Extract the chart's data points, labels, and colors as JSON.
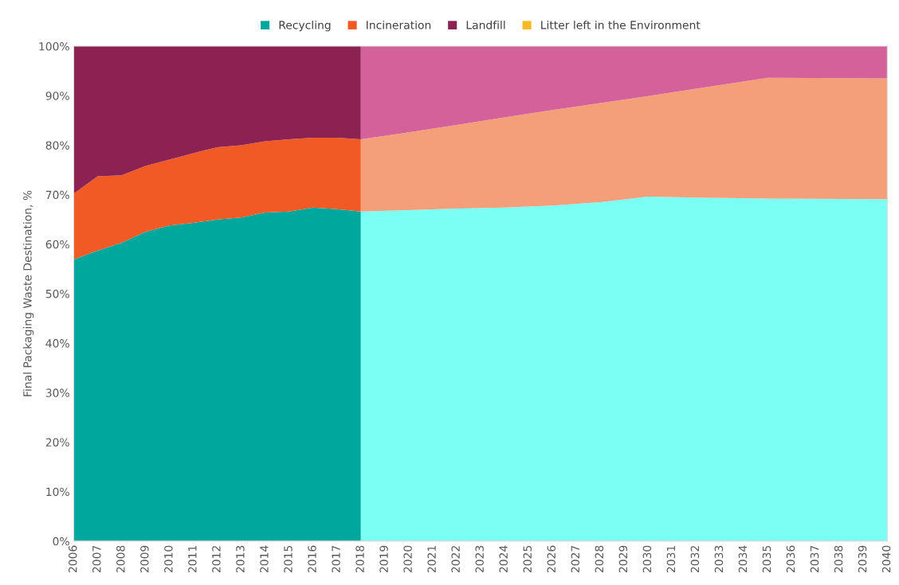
{
  "chart_data": {
    "type": "area",
    "stacked": true,
    "ylabel": "Final Packaging Waste Destination, %",
    "x": [
      2006,
      2007,
      2008,
      2009,
      2010,
      2011,
      2012,
      2013,
      2014,
      2015,
      2016,
      2017,
      2018,
      2018,
      2020,
      2022,
      2024,
      2026,
      2028,
      2030,
      2032,
      2035,
      2040
    ],
    "series": [
      {
        "name": "Recycling",
        "color": "#00a79d",
        "values": [
          56.9,
          58.7,
          60.3,
          62.5,
          63.8,
          64.3,
          65.0,
          65.4,
          66.4,
          66.6,
          67.4,
          67.1,
          66.6,
          null,
          null,
          null,
          null,
          null,
          null,
          null,
          null,
          null,
          null
        ]
      },
      {
        "name": "Incineration",
        "color": "#f15a24",
        "values": [
          13.3,
          15.0,
          13.6,
          13.3,
          13.3,
          14.1,
          14.6,
          14.6,
          14.4,
          14.6,
          14.1,
          14.4,
          14.6,
          null,
          null,
          null,
          null,
          null,
          null,
          null,
          null,
          null,
          null
        ]
      },
      {
        "name": "Landfill",
        "color": "#8b2252",
        "values": [
          29.8,
          26.3,
          26.1,
          24.2,
          22.9,
          21.6,
          20.4,
          20.0,
          19.2,
          18.8,
          18.5,
          18.5,
          18.8,
          null,
          null,
          null,
          null,
          null,
          null,
          null,
          null,
          null,
          null
        ]
      },
      {
        "color": "#7bfff4",
        "values": [
          null,
          null,
          null,
          null,
          null,
          null,
          null,
          null,
          null,
          null,
          null,
          null,
          null,
          66.6,
          66.9,
          67.2,
          67.4,
          67.8,
          68.5,
          69.6,
          69.4,
          69.2,
          69.1
        ]
      },
      {
        "color": "#f59e7a",
        "values": [
          null,
          null,
          null,
          null,
          null,
          null,
          null,
          null,
          null,
          null,
          null,
          null,
          null,
          14.6,
          15.7,
          16.9,
          18.2,
          19.3,
          20.0,
          20.3,
          22.0,
          24.4,
          24.4
        ]
      },
      {
        "color": "#d4619a",
        "values": [
          null,
          null,
          null,
          null,
          null,
          null,
          null,
          null,
          null,
          null,
          null,
          null,
          null,
          18.8,
          17.4,
          15.9,
          14.4,
          12.9,
          11.5,
          10.1,
          8.6,
          6.4,
          6.5
        ]
      },
      {
        "name": "Litter left in the Environment",
        "color": "#f7b924",
        "values": [
          null,
          null,
          null,
          null,
          null,
          null,
          null,
          null,
          null,
          null,
          null,
          null,
          null,
          null,
          null,
          null,
          null,
          null,
          null,
          null,
          null,
          null,
          null
        ]
      }
    ],
    "xlim": [
      2006,
      2040
    ],
    "xticks": [
      2006,
      2007,
      2008,
      2009,
      2010,
      2011,
      2012,
      2013,
      2014,
      2015,
      2016,
      2017,
      2018,
      2019,
      2020,
      2021,
      2022,
      2023,
      2024,
      2025,
      2026,
      2027,
      2028,
      2029,
      2030,
      2031,
      2032,
      2033,
      2034,
      2035,
      2036,
      2037,
      2038,
      2039,
      2040
    ],
    "ylim": [
      0,
      100
    ],
    "yticks": [
      {
        "value": 0,
        "label": "0%"
      },
      {
        "value": 10,
        "label": "10%"
      },
      {
        "value": 20,
        "label": "20%"
      },
      {
        "value": 30,
        "label": "30%"
      },
      {
        "value": 40,
        "label": "40%"
      },
      {
        "value": 50,
        "label": "50%"
      },
      {
        "value": 60,
        "label": "60%"
      },
      {
        "value": 70,
        "label": "70%"
      },
      {
        "value": 80,
        "label": "80%"
      },
      {
        "value": 90,
        "label": "90%"
      },
      {
        "value": 100,
        "label": "100%"
      }
    ],
    "legend": "top",
    "grid": false
  }
}
